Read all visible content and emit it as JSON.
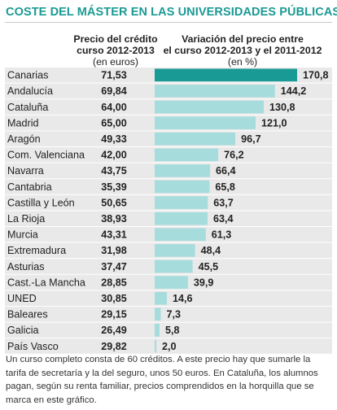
{
  "title": "COSTE DEL MÁSTER EN LAS UNIVERSIDADES PÚBLICAS",
  "columns": {
    "price": {
      "line1": "Precio del crédito",
      "line2": "curso 2012-2013",
      "unit": "(en euros)"
    },
    "variation": {
      "line1": "Variación del precio entre",
      "line2": "el curso 2012-2013 y el 2011-2012",
      "unit": "(en %)"
    }
  },
  "colors": {
    "title": "#1a9a94",
    "highlight_bar": "#1a9a94",
    "bar": "#a6dcdc",
    "row_shade": "#e9e9e9"
  },
  "chart_data": {
    "type": "bar",
    "orientation": "horizontal",
    "categories": [
      "Canarias",
      "Andalucía",
      "Cataluña",
      "Madrid",
      "Aragón",
      "Com. Valenciana",
      "Navarra",
      "Cantabria",
      "Castilla y León",
      "La Rioja",
      "Murcia",
      "Extremadura",
      "Asturias",
      "Cast.-La Mancha",
      "UNED",
      "Baleares",
      "Galicia",
      "País Vasco"
    ],
    "price_labels": [
      "71,53",
      "69,84",
      "64,00",
      "65,00",
      "49,33",
      "42,00",
      "43,75",
      "35,39",
      "50,65",
      "38,93",
      "43,31",
      "31,98",
      "37,47",
      "28,85",
      "30,85",
      "29,15",
      "26,49",
      "29,82"
    ],
    "values": [
      170.8,
      144.2,
      130.8,
      121.0,
      96.7,
      76.2,
      66.4,
      65.8,
      63.7,
      63.4,
      61.3,
      48.4,
      45.5,
      39.9,
      14.6,
      7.3,
      5.8,
      2.0
    ],
    "value_labels": [
      "170,8",
      "144,2",
      "130,8",
      "121,0",
      "96,7",
      "76,2",
      "66,4",
      "65,8",
      "63,7",
      "63,4",
      "61,3",
      "48,4",
      "45,5",
      "39,9",
      "14,6",
      "7,3",
      "5,8",
      "2,0"
    ],
    "highlight_index": 0,
    "xlim": [
      0,
      170.8
    ]
  },
  "footnote": "Un curso completo consta de 60 créditos. A este precio hay que sumarle la tarifa de secretaría y la del seguro, unos 50 euros. En Cataluña, los alumnos pagan, según su renta familiar, precios comprendidos en la horquilla que se marca en este gráfico."
}
